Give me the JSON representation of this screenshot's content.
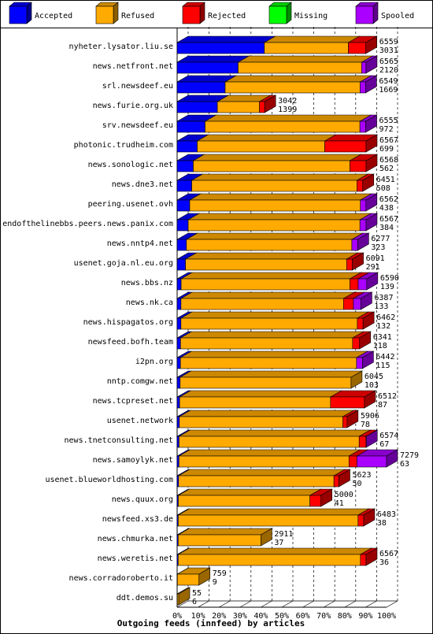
{
  "chart_data": {
    "type": "bar",
    "orientation": "horizontal",
    "stacked": true,
    "title": "",
    "xlabel": "Outgoing feeds (innfeed) by articles",
    "ylabel": "",
    "x_unit": "percent of offered articles",
    "xlim": [
      0,
      100
    ],
    "x_ticks": [
      "0%",
      "10%",
      "20%",
      "30%",
      "40%",
      "50%",
      "60%",
      "70%",
      "80%",
      "90%",
      "100%"
    ],
    "grid": true,
    "legend_position": "top",
    "legend": [
      {
        "name": "Accepted",
        "color": "#0000ff"
      },
      {
        "name": "Refused",
        "color": "#ffaa00"
      },
      {
        "name": "Rejected",
        "color": "#ff0000"
      },
      {
        "name": "Missing",
        "color": "#00ff00"
      },
      {
        "name": "Spooled",
        "color": "#aa00ff"
      }
    ],
    "categories": [
      "nyheter.lysator.liu.se",
      "news.netfront.net",
      "srl.newsdeef.eu",
      "news.furie.org.uk",
      "srv.newsdeef.eu",
      "photonic.trudheim.com",
      "news.sonologic.net",
      "news.dne3.net",
      "peering.usenet.ovh",
      "endofthelinebbs.peers.news.panix.com",
      "news.nntp4.net",
      "usenet.goja.nl.eu.org",
      "news.bbs.nz",
      "news.nk.ca",
      "news.hispagatos.org",
      "newsfeed.bofh.team",
      "i2pn.org",
      "nntp.comgw.net",
      "news.tcpreset.net",
      "usenet.network",
      "news.tnetconsulting.net",
      "news.samoylyk.net",
      "usenet.blueworldhosting.com",
      "news.quux.org",
      "newsfeed.xs3.de",
      "news.chmurka.net",
      "news.weretis.net",
      "news.corradoroberto.it",
      "ddt.demos.su"
    ],
    "offered": [
      6559,
      6565,
      6549,
      3042,
      6555,
      6567,
      6568,
      6451,
      6562,
      6567,
      6277,
      6091,
      6590,
      6387,
      6462,
      6341,
      6442,
      6045,
      6512,
      5906,
      6574,
      7279,
      5623,
      5000,
      6483,
      2911,
      6567,
      759,
      55
    ],
    "accepted": [
      3031,
      2120,
      1669,
      1399,
      972,
      699,
      562,
      508,
      438,
      384,
      323,
      291,
      139,
      133,
      132,
      118,
      115,
      103,
      87,
      78,
      67,
      63,
      50,
      41,
      38,
      37,
      36,
      9,
      6
    ],
    "refused": [
      2922,
      4293,
      4690,
      1464,
      5381,
      4432,
      5444,
      5740,
      5931,
      5970,
      5750,
      5600,
      5865,
      5650,
      6130,
      5980,
      6120,
      5942,
      5245,
      5680,
      6260,
      5910,
      5400,
      4575,
      6250,
      2874,
      6335,
      750,
      49
    ],
    "rejected": [
      606,
      0,
      0,
      179,
      0,
      1436,
      562,
      203,
      0,
      0,
      0,
      200,
      289,
      344,
      200,
      243,
      0,
      0,
      1180,
      148,
      240,
      276,
      173,
      384,
      195,
      0,
      196,
      0,
      0
    ],
    "missing": [
      0,
      0,
      0,
      0,
      0,
      0,
      0,
      0,
      0,
      0,
      0,
      0,
      0,
      0,
      0,
      0,
      0,
      0,
      0,
      0,
      0,
      0,
      0,
      0,
      0,
      0,
      0,
      0,
      0
    ],
    "spooled": [
      0,
      152,
      190,
      0,
      202,
      0,
      0,
      0,
      193,
      213,
      204,
      0,
      297,
      260,
      0,
      0,
      207,
      0,
      0,
      0,
      7,
      1030,
      0,
      0,
      0,
      0,
      0,
      0,
      0
    ],
    "max_offered": 7279
  }
}
